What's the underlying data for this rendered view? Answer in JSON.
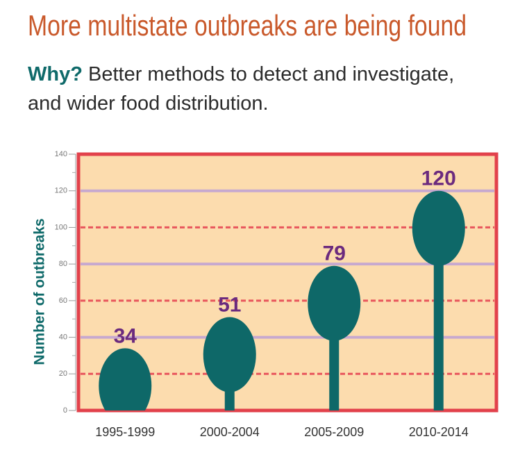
{
  "chart_data": {
    "type": "bar",
    "title": "More multistate outbreaks are being found",
    "subtitle_lead": "Why?",
    "subtitle": "Better methods to detect and investigate, and wider food distribution.",
    "y_label": "Number of outbreaks",
    "categories": [
      "1995-1999",
      "2000-2004",
      "2005-2009",
      "2010-2014"
    ],
    "values": [
      34,
      51,
      79,
      120
    ],
    "color": "#0e6868",
    "ylim": [
      0,
      140
    ],
    "yticks": [
      0,
      20,
      40,
      60,
      80,
      100,
      120,
      140
    ],
    "grid": true
  }
}
